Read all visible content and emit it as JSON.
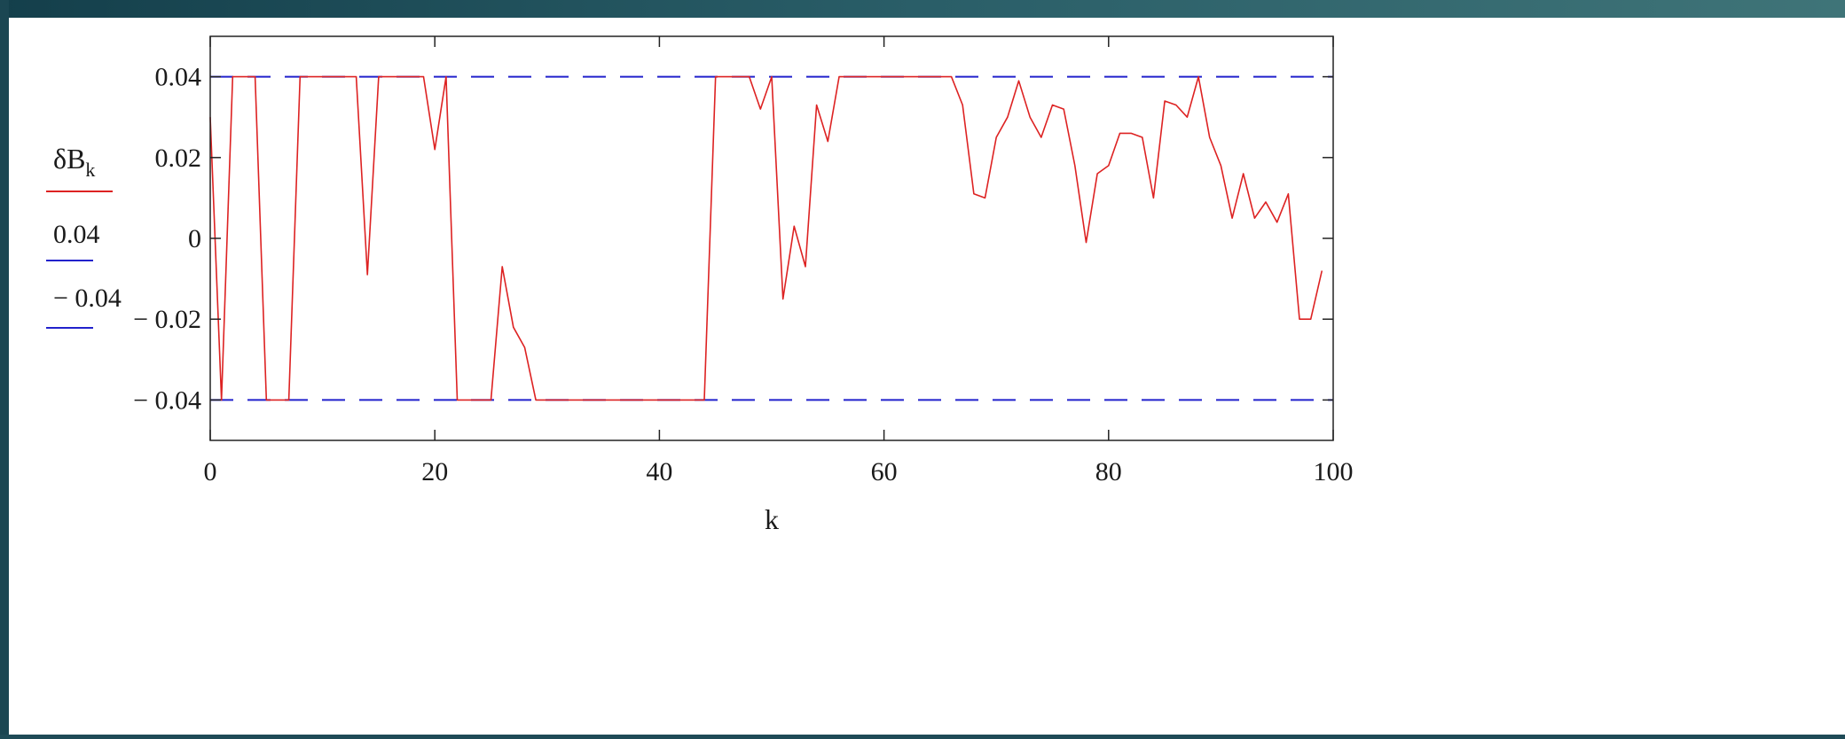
{
  "chart_data": {
    "type": "line",
    "xlabel": "k",
    "xlim": [
      0,
      100
    ],
    "ylim": [
      -0.05,
      0.05
    ],
    "x_ticks": [
      "0",
      "20",
      "40",
      "60",
      "80",
      "100"
    ],
    "y_ticks": [
      "0.04",
      "0.02",
      "0",
      "− 0.02",
      "− 0.04"
    ],
    "grid": false,
    "legend": {
      "position": "left",
      "entries": [
        {
          "label": "δB",
          "subscript": "k",
          "color": "#dd2222"
        },
        {
          "label": "0.04",
          "color": "#2222cc"
        },
        {
          "label": "− 0.04",
          "color": "#2222cc"
        }
      ]
    },
    "series": [
      {
        "color": "#dd2222",
        "x": [
          0,
          1,
          2,
          3,
          4,
          5,
          6,
          7,
          8,
          9,
          10,
          11,
          12,
          13,
          14,
          15,
          16,
          17,
          18,
          19,
          20,
          21,
          22,
          23,
          24,
          25,
          26,
          27,
          28,
          29,
          30,
          31,
          32,
          33,
          34,
          35,
          36,
          37,
          38,
          39,
          40,
          41,
          42,
          43,
          44,
          45,
          46,
          47,
          48,
          49,
          50,
          51,
          52,
          53,
          54,
          55,
          56,
          57,
          58,
          59,
          60,
          61,
          62,
          63,
          64,
          65,
          66,
          67,
          68,
          69,
          70,
          71,
          72,
          73,
          74,
          75,
          76,
          77,
          78,
          79,
          80,
          81,
          82,
          83,
          84,
          85,
          86,
          87,
          88,
          89,
          90,
          91,
          92,
          93,
          94,
          95,
          96,
          97,
          98,
          99
        ],
        "values": [
          0.03,
          -0.04,
          0.04,
          0.04,
          0.04,
          -0.04,
          -0.04,
          -0.04,
          0.04,
          0.04,
          0.04,
          0.04,
          0.04,
          0.04,
          -0.009,
          0.04,
          0.04,
          0.04,
          0.04,
          0.04,
          0.022,
          0.04,
          -0.04,
          -0.04,
          -0.04,
          -0.04,
          -0.007,
          -0.022,
          -0.027,
          -0.04,
          -0.04,
          -0.04,
          -0.04,
          -0.04,
          -0.04,
          -0.04,
          -0.04,
          -0.04,
          -0.04,
          -0.04,
          -0.04,
          -0.04,
          -0.04,
          -0.04,
          -0.04,
          0.04,
          0.04,
          0.04,
          0.04,
          0.032,
          0.04,
          -0.015,
          0.003,
          -0.007,
          0.033,
          0.024,
          0.04,
          0.04,
          0.04,
          0.04,
          0.04,
          0.04,
          0.04,
          0.04,
          0.04,
          0.04,
          0.04,
          0.033,
          0.011,
          0.01,
          0.025,
          0.03,
          0.039,
          0.03,
          0.025,
          0.033,
          0.032,
          0.018,
          -0.001,
          0.016,
          0.018,
          0.026,
          0.026,
          0.025,
          0.01,
          0.034,
          0.033,
          0.03,
          0.04,
          0.025,
          0.018,
          0.005,
          0.016,
          0.005,
          0.009,
          0.004,
          0.011,
          -0.02,
          -0.02,
          -0.008
        ]
      },
      {
        "color": "#2222cc",
        "dashed": true,
        "x": [
          0,
          100
        ],
        "values": [
          0.04,
          0.04
        ]
      },
      {
        "color": "#2222cc",
        "dashed": true,
        "x": [
          0,
          100
        ],
        "values": [
          -0.04,
          -0.04
        ]
      }
    ]
  }
}
